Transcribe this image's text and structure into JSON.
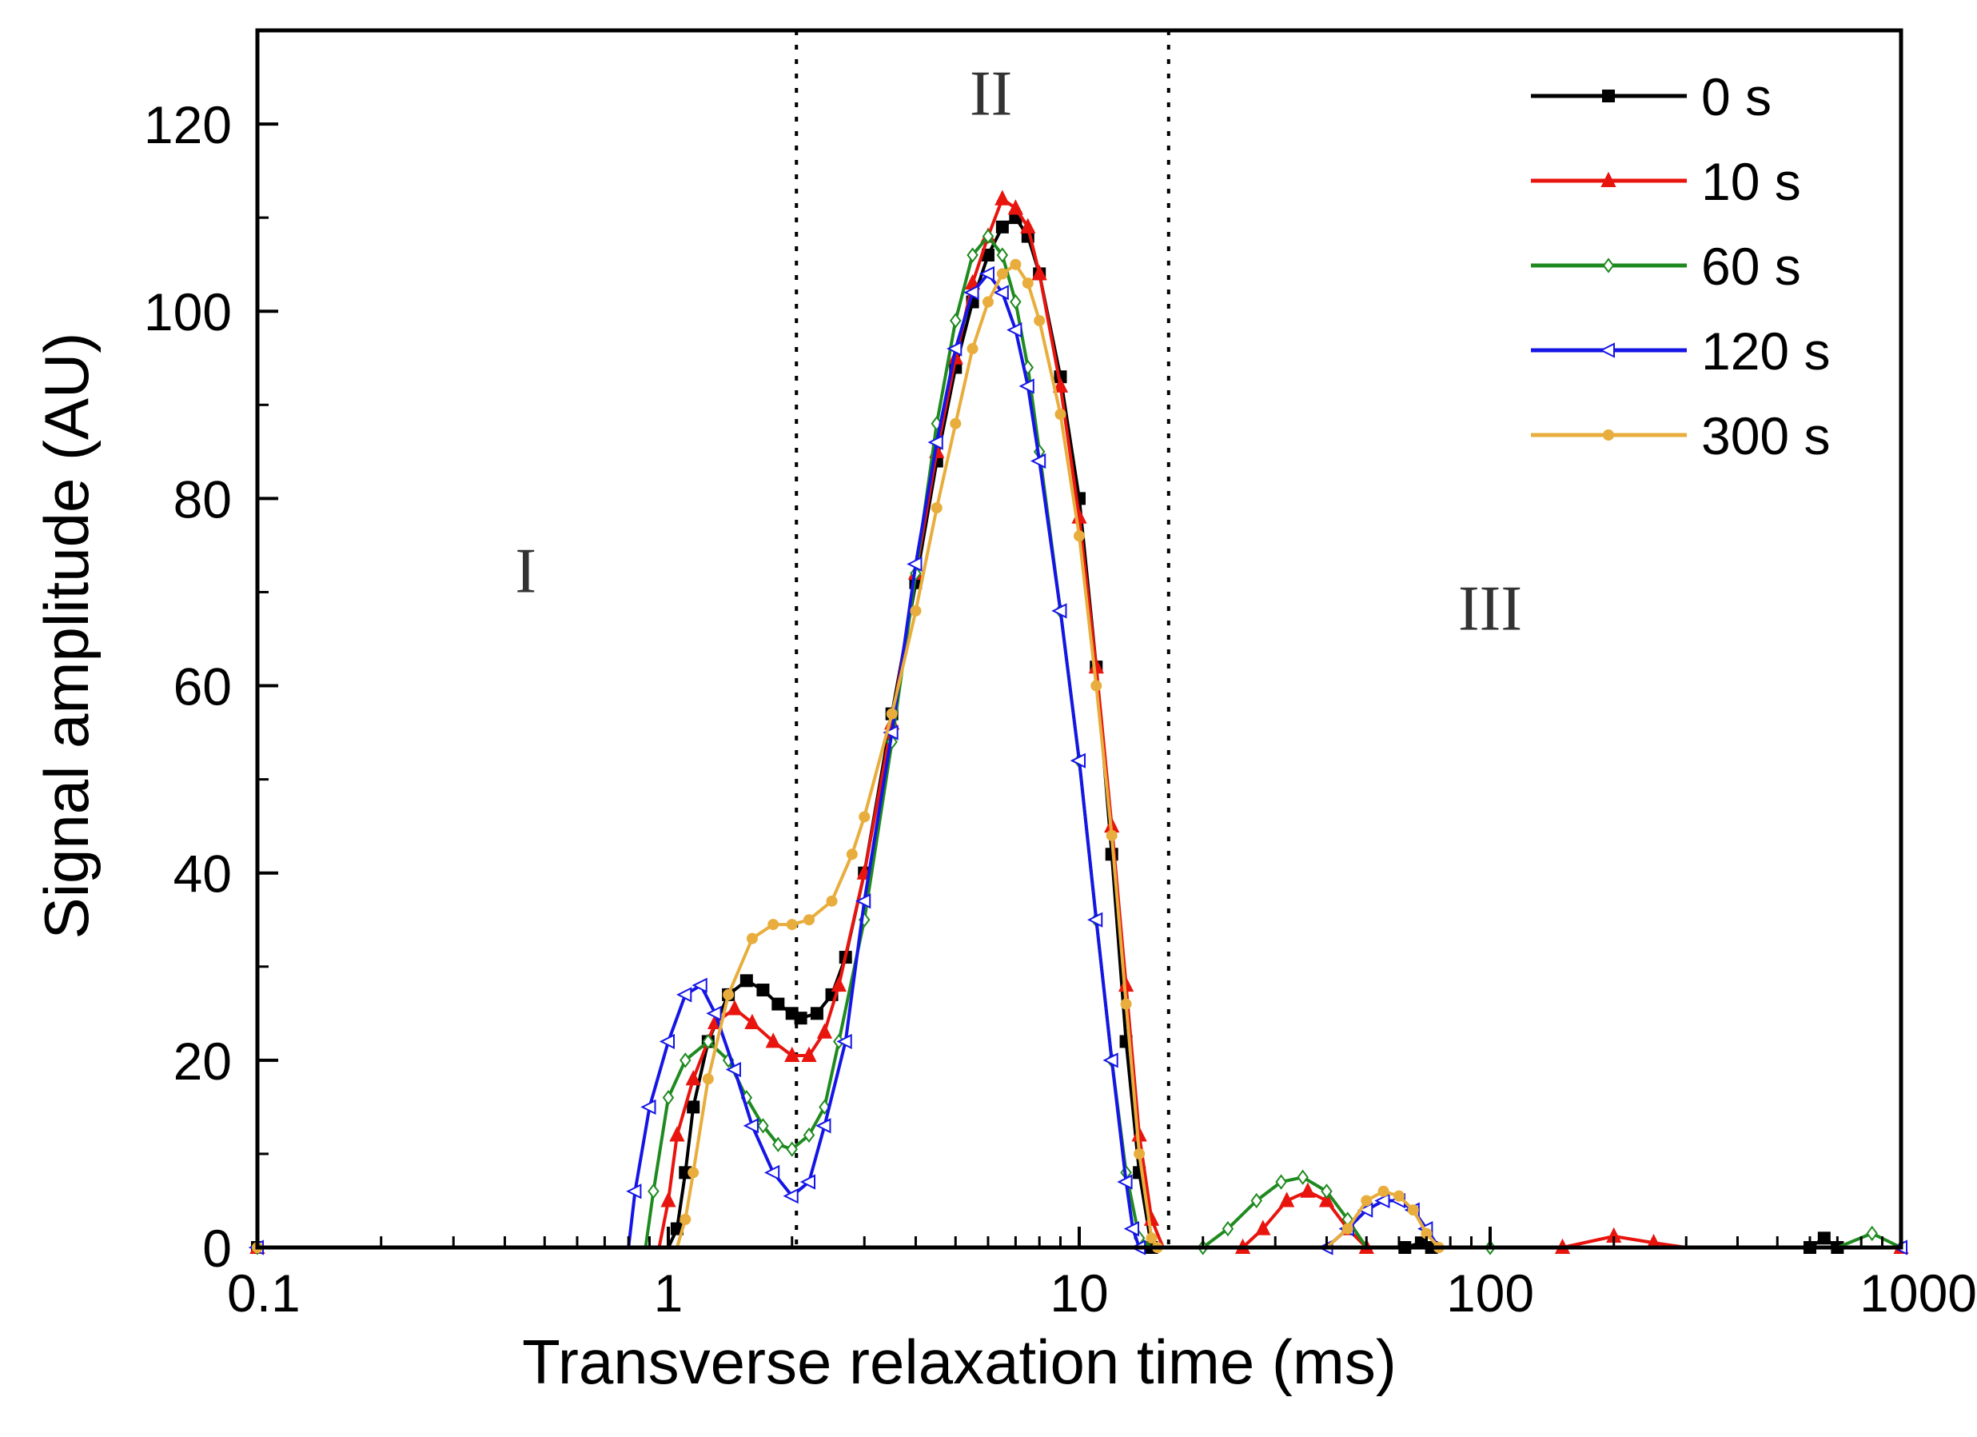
{
  "chart_data": {
    "type": "line",
    "title": "",
    "xlabel": "Transverse relaxation time (ms)",
    "ylabel": "Signal amplitude (AU)",
    "xscale": "log",
    "xlim": [
      0.1,
      1000
    ],
    "ylim": [
      0,
      130
    ],
    "xticks": [
      {
        "value": 0.1,
        "label": "0.1"
      },
      {
        "value": 1,
        "label": "1"
      },
      {
        "value": 10,
        "label": "10"
      },
      {
        "value": 100,
        "label": "100"
      },
      {
        "value": 1000,
        "label": "1000"
      }
    ],
    "yticks": [
      {
        "value": 0,
        "label": "0"
      },
      {
        "value": 20,
        "label": "20"
      },
      {
        "value": 40,
        "label": "40"
      },
      {
        "value": 60,
        "label": "60"
      },
      {
        "value": 80,
        "label": "80"
      },
      {
        "value": 100,
        "label": "100"
      },
      {
        "value": 120,
        "label": "120"
      }
    ],
    "dividers": [
      2.05,
      16.5
    ],
    "regions": [
      {
        "label": "I",
        "x": 0.45,
        "y": 70
      },
      {
        "label": "II",
        "x": 6.1,
        "y": 121
      },
      {
        "label": "III",
        "x": 100,
        "y": 66
      }
    ],
    "legend_position": "top-right",
    "series": [
      {
        "name": "0 s",
        "color": "#000000",
        "marker": "square",
        "points": [
          [
            0.1,
            0
          ],
          [
            1.0,
            0
          ],
          [
            1.05,
            2
          ],
          [
            1.1,
            8
          ],
          [
            1.15,
            15
          ],
          [
            1.25,
            22
          ],
          [
            1.4,
            27
          ],
          [
            1.55,
            28.5
          ],
          [
            1.7,
            27.5
          ],
          [
            1.85,
            26
          ],
          [
            2.0,
            25
          ],
          [
            2.1,
            24.5
          ],
          [
            2.3,
            25
          ],
          [
            2.5,
            27
          ],
          [
            2.7,
            31
          ],
          [
            3.0,
            40
          ],
          [
            3.5,
            57
          ],
          [
            4.0,
            71
          ],
          [
            4.5,
            84
          ],
          [
            5.0,
            94
          ],
          [
            5.5,
            101
          ],
          [
            6.0,
            106
          ],
          [
            6.5,
            109
          ],
          [
            7.0,
            110
          ],
          [
            7.5,
            108
          ],
          [
            8.0,
            104
          ],
          [
            9.0,
            93
          ],
          [
            10.0,
            80
          ],
          [
            11.0,
            62
          ],
          [
            12.0,
            42
          ],
          [
            13.0,
            22
          ],
          [
            14.0,
            8
          ],
          [
            15.0,
            0
          ],
          [
            60,
            0
          ],
          [
            62,
            0
          ],
          [
            68,
            0.5
          ],
          [
            72,
            0
          ],
          [
            100,
            0
          ],
          [
            600,
            0
          ],
          [
            650,
            1
          ],
          [
            700,
            0
          ],
          [
            1000,
            0
          ]
        ]
      },
      {
        "name": "10 s",
        "color": "#e8140e",
        "marker": "triangle-up",
        "points": [
          [
            0.1,
            0
          ],
          [
            0.95,
            0
          ],
          [
            1.0,
            5
          ],
          [
            1.05,
            12
          ],
          [
            1.15,
            18
          ],
          [
            1.3,
            24
          ],
          [
            1.45,
            25.5
          ],
          [
            1.6,
            24
          ],
          [
            1.8,
            22
          ],
          [
            2.0,
            20.5
          ],
          [
            2.2,
            20.5
          ],
          [
            2.4,
            23
          ],
          [
            2.6,
            28
          ],
          [
            3.0,
            40
          ],
          [
            3.5,
            56
          ],
          [
            4.0,
            72
          ],
          [
            4.5,
            85
          ],
          [
            5.0,
            95
          ],
          [
            5.5,
            103
          ],
          [
            6.0,
            108
          ],
          [
            6.5,
            112
          ],
          [
            7.0,
            111
          ],
          [
            7.5,
            109
          ],
          [
            8.0,
            104
          ],
          [
            9.0,
            92
          ],
          [
            10.0,
            78
          ],
          [
            11.0,
            62
          ],
          [
            12.0,
            45
          ],
          [
            13.0,
            28
          ],
          [
            14.0,
            12
          ],
          [
            15.0,
            3
          ],
          [
            16.0,
            0
          ],
          [
            25,
            0
          ],
          [
            28,
            2
          ],
          [
            32,
            5
          ],
          [
            36,
            6
          ],
          [
            40,
            5
          ],
          [
            45,
            2
          ],
          [
            50,
            0
          ],
          [
            100,
            0
          ],
          [
            150,
            0
          ],
          [
            200,
            1.2
          ],
          [
            250,
            0.5
          ],
          [
            300,
            0
          ],
          [
            1000,
            0
          ]
        ]
      },
      {
        "name": "60 s",
        "color": "#1f8a1f",
        "marker": "diamond",
        "points": [
          [
            0.1,
            0
          ],
          [
            0.88,
            0
          ],
          [
            0.92,
            6
          ],
          [
            1.0,
            16
          ],
          [
            1.1,
            20
          ],
          [
            1.25,
            22
          ],
          [
            1.4,
            20
          ],
          [
            1.55,
            16
          ],
          [
            1.7,
            13
          ],
          [
            1.85,
            11
          ],
          [
            2.0,
            10.5
          ],
          [
            2.2,
            12
          ],
          [
            2.4,
            15
          ],
          [
            2.6,
            22
          ],
          [
            3.0,
            35
          ],
          [
            3.5,
            54
          ],
          [
            4.0,
            72
          ],
          [
            4.5,
            88
          ],
          [
            5.0,
            99
          ],
          [
            5.5,
            106
          ],
          [
            6.0,
            108
          ],
          [
            6.5,
            106
          ],
          [
            7.0,
            101
          ],
          [
            7.5,
            94
          ],
          [
            8.0,
            85
          ],
          [
            9.0,
            68
          ],
          [
            10.0,
            52
          ],
          [
            11.0,
            35
          ],
          [
            12.0,
            20
          ],
          [
            13.0,
            8
          ],
          [
            14.0,
            1
          ],
          [
            15.0,
            0
          ],
          [
            20,
            0
          ],
          [
            23,
            2
          ],
          [
            27,
            5
          ],
          [
            31,
            7
          ],
          [
            35,
            7.5
          ],
          [
            40,
            6
          ],
          [
            45,
            3
          ],
          [
            50,
            0
          ],
          [
            100,
            0
          ],
          [
            700,
            0
          ],
          [
            850,
            1.5
          ],
          [
            1000,
            0
          ]
        ]
      },
      {
        "name": "120 s",
        "color": "#1515e6",
        "marker": "triangle-left",
        "points": [
          [
            0.1,
            0
          ],
          [
            0.8,
            0
          ],
          [
            0.83,
            6
          ],
          [
            0.9,
            15
          ],
          [
            1.0,
            22
          ],
          [
            1.1,
            27
          ],
          [
            1.2,
            28
          ],
          [
            1.3,
            25
          ],
          [
            1.45,
            19
          ],
          [
            1.6,
            13
          ],
          [
            1.8,
            8
          ],
          [
            2.0,
            5.5
          ],
          [
            2.2,
            7
          ],
          [
            2.4,
            13
          ],
          [
            2.7,
            22
          ],
          [
            3.0,
            37
          ],
          [
            3.5,
            55
          ],
          [
            4.0,
            73
          ],
          [
            4.5,
            86
          ],
          [
            5.0,
            96
          ],
          [
            5.5,
            102
          ],
          [
            6.0,
            104
          ],
          [
            6.5,
            102
          ],
          [
            7.0,
            98
          ],
          [
            7.5,
            92
          ],
          [
            8.0,
            84
          ],
          [
            9.0,
            68
          ],
          [
            10.0,
            52
          ],
          [
            11.0,
            35
          ],
          [
            12.0,
            20
          ],
          [
            13.0,
            7
          ],
          [
            13.5,
            2
          ],
          [
            14.0,
            0
          ],
          [
            30,
            0
          ],
          [
            40,
            0
          ],
          [
            45,
            2
          ],
          [
            50,
            4
          ],
          [
            55,
            5
          ],
          [
            60,
            5
          ],
          [
            65,
            4
          ],
          [
            70,
            2
          ],
          [
            75,
            0
          ],
          [
            1000,
            0
          ]
        ]
      },
      {
        "name": "300 s",
        "color": "#e8ad3c",
        "marker": "circle",
        "points": [
          [
            0.1,
            0
          ],
          [
            1.05,
            0
          ],
          [
            1.1,
            3
          ],
          [
            1.15,
            8
          ],
          [
            1.25,
            18
          ],
          [
            1.4,
            27
          ],
          [
            1.6,
            33
          ],
          [
            1.8,
            34.5
          ],
          [
            2.0,
            34.5
          ],
          [
            2.2,
            35
          ],
          [
            2.5,
            37
          ],
          [
            2.8,
            42
          ],
          [
            3.0,
            46
          ],
          [
            3.5,
            57
          ],
          [
            4.0,
            68
          ],
          [
            4.5,
            79
          ],
          [
            5.0,
            88
          ],
          [
            5.5,
            96
          ],
          [
            6.0,
            101
          ],
          [
            6.5,
            104
          ],
          [
            7.0,
            105
          ],
          [
            7.5,
            103
          ],
          [
            8.0,
            99
          ],
          [
            9.0,
            89
          ],
          [
            10.0,
            76
          ],
          [
            11.0,
            60
          ],
          [
            12.0,
            44
          ],
          [
            13.0,
            26
          ],
          [
            14.0,
            10
          ],
          [
            15.0,
            1
          ],
          [
            15.5,
            0
          ],
          [
            40,
            0
          ],
          [
            45,
            2
          ],
          [
            50,
            5
          ],
          [
            55,
            6
          ],
          [
            60,
            5.5
          ],
          [
            65,
            4
          ],
          [
            70,
            1.5
          ],
          [
            75,
            0
          ],
          [
            1000,
            0
          ]
        ]
      }
    ]
  }
}
